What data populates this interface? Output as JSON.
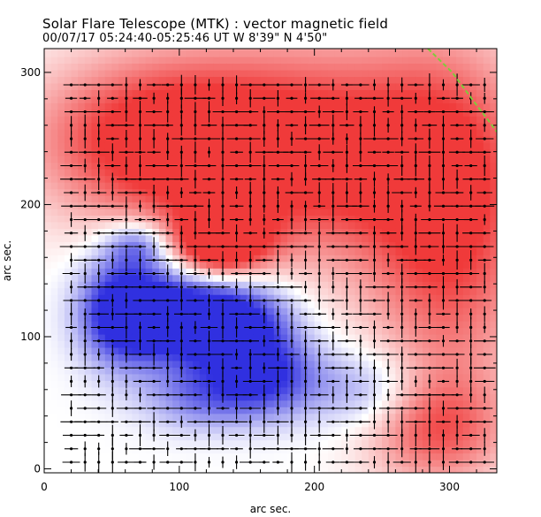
{
  "title": {
    "line1": "Solar Flare Telescope (MTK) : vector magnetic field",
    "line2": "00/07/17  05:24:40-05:25:46 UT     W 8'39\"  N 4'50\""
  },
  "axes": {
    "xlabel": "arc sec.",
    "ylabel": "arc sec.",
    "xlim": [
      0,
      335
    ],
    "ylim": [
      -3,
      318
    ],
    "x_ticks": [
      0,
      100,
      200,
      300
    ],
    "y_ticks": [
      0,
      100,
      200,
      300
    ]
  },
  "colors": {
    "positive_polarity": "#f03a3a",
    "negative_polarity": "#3030e0",
    "vector": "#000000",
    "limb_trace": "#7fcc3a"
  },
  "chart_data": {
    "type": "vector_field",
    "title": "Solar Flare Telescope (MTK) : vector magnetic field",
    "xlabel": "arc sec.",
    "ylabel": "arc sec.",
    "xlim": [
      0,
      335
    ],
    "ylim": [
      -3,
      318
    ],
    "x_ticks": [
      0,
      100,
      200,
      300
    ],
    "y_ticks": [
      0,
      100,
      200,
      300
    ],
    "vector_grid": {
      "x_range": [
        20,
        330
      ],
      "y_range": [
        5,
        300
      ],
      "spacing": 10.2
    },
    "negative_regions": [
      {
        "x": 140,
        "y": 110,
        "rx": 42,
        "ry": 35,
        "strength": 0.95
      },
      {
        "x": 90,
        "y": 118,
        "rx": 40,
        "ry": 36,
        "strength": 0.8
      },
      {
        "x": 55,
        "y": 120,
        "rx": 30,
        "ry": 40,
        "strength": 0.75
      },
      {
        "x": 170,
        "y": 70,
        "rx": 38,
        "ry": 30,
        "strength": 0.55
      },
      {
        "x": 120,
        "y": 55,
        "rx": 45,
        "ry": 25,
        "strength": 0.45
      },
      {
        "x": 240,
        "y": 60,
        "rx": 40,
        "ry": 30,
        "strength": 0.35
      },
      {
        "x": 70,
        "y": 170,
        "rx": 25,
        "ry": 18,
        "strength": 0.5
      }
    ],
    "positive_regions": [
      {
        "x": 130,
        "y": 170,
        "rx": 35,
        "ry": 25,
        "strength": 1.0
      },
      {
        "x": 200,
        "y": 240,
        "rx": 120,
        "ry": 80,
        "strength": 0.8
      },
      {
        "x": 80,
        "y": 250,
        "rx": 90,
        "ry": 60,
        "strength": 0.7
      },
      {
        "x": 300,
        "y": 180,
        "rx": 60,
        "ry": 130,
        "strength": 0.65
      },
      {
        "x": 290,
        "y": 30,
        "rx": 50,
        "ry": 40,
        "strength": 0.5
      }
    ],
    "limb_trace": {
      "x": [
        284,
        302,
        318,
        330,
        335
      ],
      "y": [
        318,
        300,
        278,
        262,
        255
      ]
    }
  }
}
